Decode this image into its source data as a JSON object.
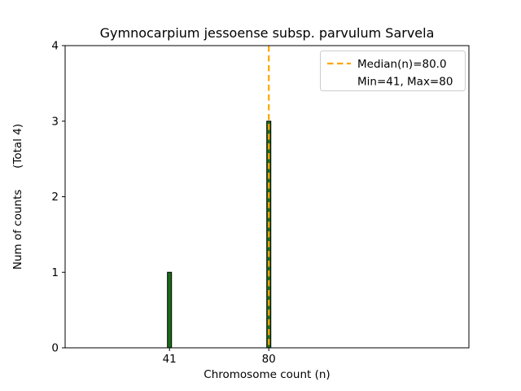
{
  "chart_data": {
    "type": "bar",
    "title": "Gymnocarpium jessoense subsp. parvulum Sarvela",
    "xlabel": "Chromosome count (n)",
    "ylabel": "Num of counts      (Total 4)",
    "categories": [
      41,
      80
    ],
    "values": [
      1,
      3
    ],
    "xticks": [
      "41",
      "80"
    ],
    "yticks": [
      "0",
      "1",
      "2",
      "3",
      "4"
    ],
    "xlim": [
      0,
      158.6
    ],
    "ylim": [
      0,
      4
    ],
    "grid": false,
    "bar_color": "#1a6b1a",
    "bar_edge_color": "#000000",
    "median_line": {
      "x": 80,
      "color": "#ffa500",
      "style": "dashed"
    },
    "legend": {
      "position": "upper-right",
      "entries": [
        {
          "symbol": "dashed-line",
          "color": "#ffa500",
          "label": "Median(n)=80.0"
        },
        {
          "symbol": "none",
          "color": "",
          "label": "Min=41, Max=80"
        }
      ]
    }
  }
}
